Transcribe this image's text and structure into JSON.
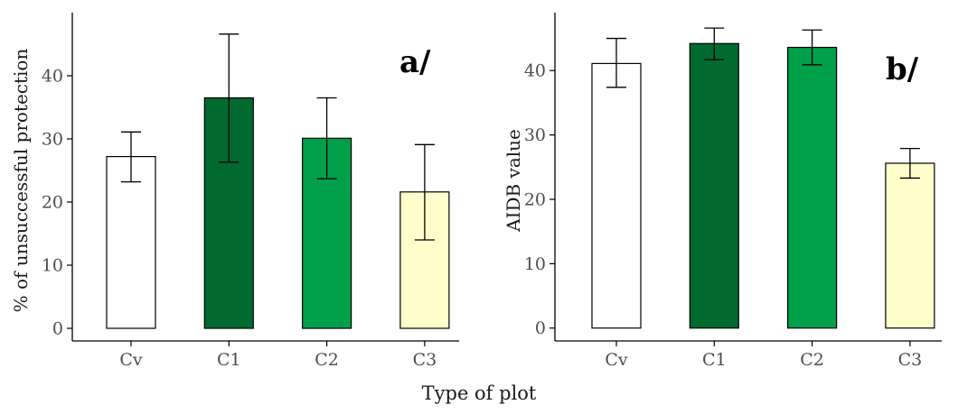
{
  "colors": {
    "bar_colors": [
      "#ffffff",
      "#006a2f",
      "#00a04a",
      "#ffffcc"
    ],
    "bar_stroke": "#000000",
    "axis": "#000000",
    "tick_text": "#4d4d4d"
  },
  "shared_xlabel": "Type of plot",
  "chart_data": [
    {
      "type": "bar",
      "panel_tag": "a/",
      "categories": [
        "Cv",
        "C1",
        "C2",
        "C3"
      ],
      "values": [
        27.2,
        36.5,
        30.1,
        21.6
      ],
      "error_low": [
        23.2,
        26.3,
        23.7,
        14.0
      ],
      "error_high": [
        31.1,
        46.6,
        36.5,
        29.1
      ],
      "xlabel": "",
      "ylabel": "% of unsuccessful protection",
      "ylim": [
        -2,
        50
      ],
      "yticks": [
        0,
        10,
        20,
        30,
        40
      ],
      "grid": false
    },
    {
      "type": "bar",
      "panel_tag": "b/",
      "categories": [
        "Cv",
        "C1",
        "C2",
        "C3"
      ],
      "values": [
        41.1,
        44.2,
        43.6,
        25.6
      ],
      "error_low": [
        37.4,
        41.7,
        40.9,
        23.3
      ],
      "error_high": [
        45.0,
        46.6,
        46.3,
        27.9
      ],
      "xlabel": "",
      "ylabel": "AIDB value",
      "ylim": [
        -2,
        49
      ],
      "yticks": [
        0,
        10,
        20,
        30,
        40
      ],
      "grid": false
    }
  ]
}
